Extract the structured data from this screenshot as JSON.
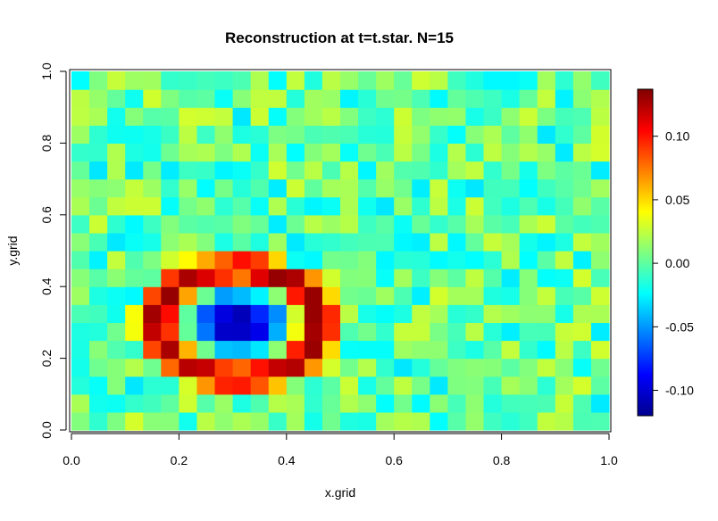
{
  "chart_data": {
    "type": "heatmap",
    "title": "Reconstruction at t=t.star. N=15",
    "xlabel": "x.grid",
    "ylabel": "y.grid",
    "xlim": [
      0,
      1
    ],
    "ylim": [
      0,
      1
    ],
    "x_ticks": [
      "0.0",
      "0.2",
      "0.4",
      "0.6",
      "0.8",
      "1.0"
    ],
    "y_ticks": [
      "0.0",
      "0.2",
      "0.4",
      "0.6",
      "0.8",
      "1.0"
    ],
    "grid": false,
    "n_cols": 30,
    "n_rows": 20,
    "zlim": [
      -0.12,
      0.137
    ],
    "colorbar": {
      "ticks": [
        "0.10",
        "0.05",
        "0.00",
        "-0.05",
        "-0.10"
      ],
      "tick_values": [
        0.1,
        0.05,
        0.0,
        -0.05,
        -0.1
      ]
    },
    "colormap": [
      "#00008F",
      "#0000FF",
      "#007FFF",
      "#00FFFF",
      "#7FFF7F",
      "#FFFF00",
      "#FF7F00",
      "#FF0000",
      "#7F0000"
    ],
    "ring": {
      "center": [
        0.31,
        0.3
      ],
      "peak_value": 0.137,
      "center_value": -0.12
    },
    "background_range": [
      -0.03,
      0.03
    ]
  }
}
